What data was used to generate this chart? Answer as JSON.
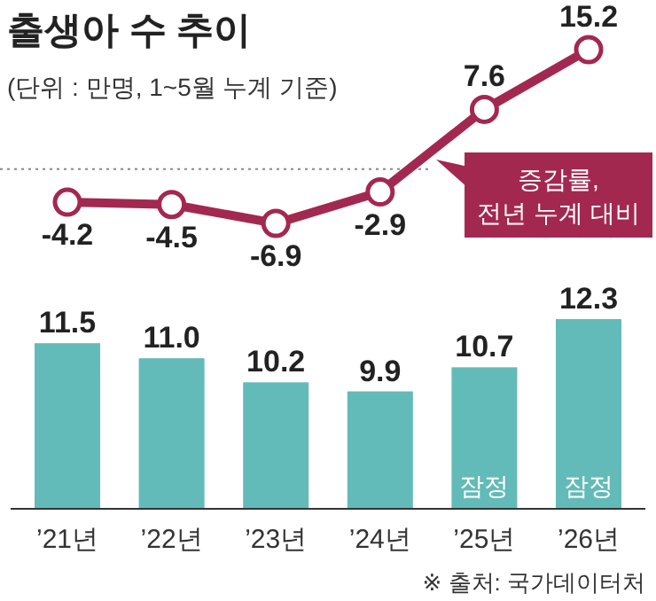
{
  "chart_data": [
    {
      "type": "line",
      "title": "출생아 수 추이",
      "subtitle": "(단위 : 만명, 1~5월 누계 기준)",
      "categories": [
        null,
        null,
        null,
        null,
        null,
        null
      ],
      "marker": "circle",
      "legend": "right",
      "ref_lines": [
        {
          "axis": "y",
          "value": 0,
          "color": "#888888",
          "line_style": "dotted"
        }
      ],
      "series": [
        {
          "name": "증감률, 전년 누계 대비",
          "color": "#a3284f",
          "values": [
            -4.2,
            -4.5,
            -6.9,
            -2.9,
            7.6,
            15.2
          ],
          "value_labels": [
            "-4.2",
            "-4.5",
            "-6.9",
            "-2.9",
            "7.6",
            "15.2"
          ]
        }
      ]
    },
    {
      "type": "bar",
      "categories": [
        "’21년",
        "’22년",
        "’23년",
        "’24년",
        "’25년",
        "’26년"
      ],
      "tick_labels": "x",
      "ylim": [
        6,
        12.3
      ],
      "series": [
        {
          "color": "#62bbb8",
          "values": [
            11.5,
            11.0,
            10.2,
            9.9,
            10.7,
            12.3
          ],
          "value_labels": [
            "11.5",
            "11.0",
            "10.2",
            "9.9",
            "10.7",
            "12.3"
          ]
        }
      ],
      "annotations": [
        "잠정",
        "잠정",
        "※ 출처: 국가데이터처"
      ]
    }
  ]
}
